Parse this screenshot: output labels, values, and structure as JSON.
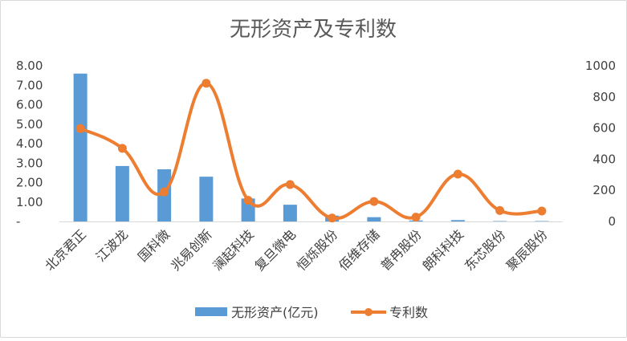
{
  "chart_data": {
    "type": "bar+line",
    "title": "无形资产及专利数",
    "categories": [
      "北京君正",
      "江波龙",
      "国科微",
      "兆易创新",
      "澜起科技",
      "复旦微电",
      "恒烁股份",
      "佰维存储",
      "普冉股份",
      "朗科科技",
      "东芯股份",
      "聚辰股份"
    ],
    "series": [
      {
        "name": "无形资产(亿元)",
        "type": "bar",
        "axis": "left",
        "color": "#5b9bd5",
        "values": [
          7.6,
          2.85,
          2.68,
          2.3,
          1.18,
          0.86,
          0.3,
          0.22,
          0.05,
          0.07,
          0.02,
          0.02
        ]
      },
      {
        "name": "专利数",
        "type": "line",
        "axis": "right",
        "smooth": true,
        "marker": "circle",
        "color": "#ed7d31",
        "values": [
          597,
          470,
          190,
          888,
          136,
          237,
          22,
          128,
          28,
          304,
          70,
          67
        ]
      }
    ],
    "y_left": {
      "min": 0,
      "max": 8,
      "step": 1,
      "tick_labels": [
        "-",
        "1.00",
        "2.00",
        "3.00",
        "4.00",
        "5.00",
        "6.00",
        "7.00",
        "8.00"
      ]
    },
    "y_right": {
      "min": 0,
      "max": 1000,
      "step": 200,
      "tick_labels": [
        "0",
        "200",
        "400",
        "600",
        "800",
        "1000"
      ]
    },
    "grid": false,
    "legend": "bottom"
  }
}
